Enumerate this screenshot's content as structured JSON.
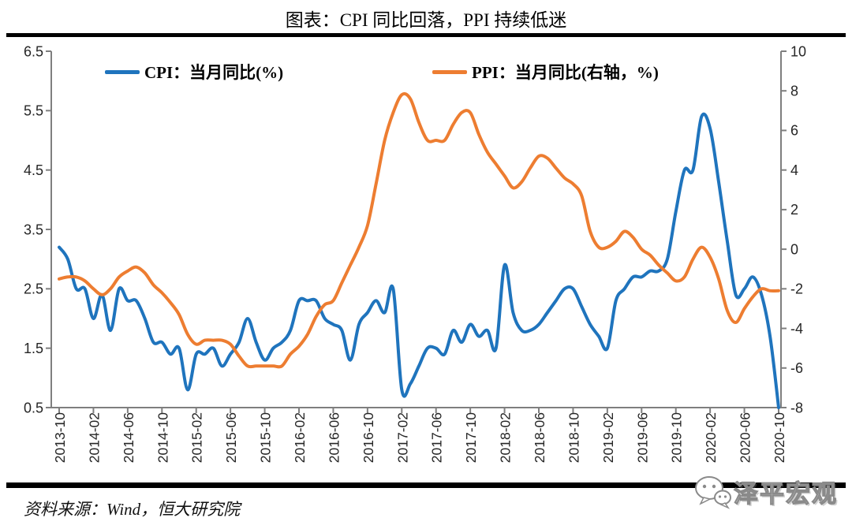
{
  "title": "图表：CPI 同比回落，PPI 持续低迷",
  "source": "资料来源：Wind，恒大研究院",
  "watermark": "泽平宏观",
  "colors": {
    "cpi_blue": "#1F74BD",
    "ppi_orange": "#ED7D31",
    "axis_gray": "#7F7F7F",
    "tick_text": "#262626",
    "rule_black": "#000000"
  },
  "legend": [
    {
      "label": "CPI：当月同比(%)",
      "color": "#1F74BD"
    },
    {
      "label": "PPI：当月同比(右轴，%)",
      "color": "#ED7D31"
    }
  ],
  "chart_data": {
    "type": "line",
    "title": "图表：CPI 同比回落，PPI 持续低迷",
    "grid": false,
    "legend_position": "top",
    "x": [
      "2013-10",
      "2013-11",
      "2013-12",
      "2014-01",
      "2014-02",
      "2014-03",
      "2014-04",
      "2014-05",
      "2014-06",
      "2014-07",
      "2014-08",
      "2014-09",
      "2014-10",
      "2014-11",
      "2014-12",
      "2015-01",
      "2015-02",
      "2015-03",
      "2015-04",
      "2015-05",
      "2015-06",
      "2015-07",
      "2015-08",
      "2015-09",
      "2015-10",
      "2015-11",
      "2015-12",
      "2016-01",
      "2016-02",
      "2016-03",
      "2016-04",
      "2016-05",
      "2016-06",
      "2016-07",
      "2016-08",
      "2016-09",
      "2016-10",
      "2016-11",
      "2016-12",
      "2017-01",
      "2017-02",
      "2017-03",
      "2017-04",
      "2017-05",
      "2017-06",
      "2017-07",
      "2017-08",
      "2017-09",
      "2017-10",
      "2017-11",
      "2017-12",
      "2018-01",
      "2018-02",
      "2018-03",
      "2018-04",
      "2018-05",
      "2018-06",
      "2018-07",
      "2018-08",
      "2018-09",
      "2018-10",
      "2018-11",
      "2018-12",
      "2019-01",
      "2019-02",
      "2019-03",
      "2019-04",
      "2019-05",
      "2019-06",
      "2019-07",
      "2019-08",
      "2019-09",
      "2019-10",
      "2019-11",
      "2019-12",
      "2020-01",
      "2020-02",
      "2020-03",
      "2020-04",
      "2020-05",
      "2020-06",
      "2020-07",
      "2020-08",
      "2020-09",
      "2020-10"
    ],
    "x_tick_labels": [
      "2013-10",
      "2014-02",
      "2014-06",
      "2014-10",
      "2015-02",
      "2015-06",
      "2015-10",
      "2016-02",
      "2016-06",
      "2016-10",
      "2017-02",
      "2017-06",
      "2017-10",
      "2018-02",
      "2018-06",
      "2018-10",
      "2019-02",
      "2019-06",
      "2019-10",
      "2020-02",
      "2020-06",
      "2020-10"
    ],
    "series": [
      {
        "name": "CPI：当月同比(%)",
        "axis": "left",
        "color": "#1F74BD",
        "values": [
          3.2,
          3.0,
          2.5,
          2.5,
          2.0,
          2.4,
          1.8,
          2.5,
          2.3,
          2.3,
          2.0,
          1.6,
          1.6,
          1.4,
          1.5,
          0.8,
          1.4,
          1.4,
          1.5,
          1.2,
          1.4,
          1.6,
          2.0,
          1.6,
          1.3,
          1.5,
          1.6,
          1.8,
          2.3,
          2.3,
          2.3,
          2.0,
          1.9,
          1.8,
          1.3,
          1.9,
          2.1,
          2.3,
          2.1,
          2.5,
          0.8,
          0.9,
          1.2,
          1.5,
          1.5,
          1.4,
          1.8,
          1.6,
          1.9,
          1.7,
          1.8,
          1.5,
          2.9,
          2.1,
          1.8,
          1.8,
          1.9,
          2.1,
          2.3,
          2.5,
          2.5,
          2.2,
          1.9,
          1.7,
          1.5,
          2.3,
          2.5,
          2.7,
          2.7,
          2.8,
          2.8,
          3.0,
          3.8,
          4.5,
          4.5,
          5.4,
          5.2,
          4.3,
          3.3,
          2.4,
          2.5,
          2.7,
          2.4,
          1.7,
          0.5
        ]
      },
      {
        "name": "PPI：当月同比(右轴，%)",
        "axis": "right",
        "color": "#ED7D31",
        "values": [
          -1.5,
          -1.4,
          -1.4,
          -1.6,
          -2.0,
          -2.3,
          -2.0,
          -1.4,
          -1.1,
          -0.9,
          -1.2,
          -1.8,
          -2.2,
          -2.7,
          -3.3,
          -4.3,
          -4.8,
          -4.6,
          -4.6,
          -4.6,
          -4.8,
          -5.4,
          -5.9,
          -5.9,
          -5.9,
          -5.9,
          -5.9,
          -5.3,
          -4.9,
          -4.3,
          -3.4,
          -2.8,
          -2.6,
          -1.7,
          -0.8,
          0.1,
          1.2,
          3.3,
          5.5,
          6.9,
          7.8,
          7.6,
          6.4,
          5.5,
          5.5,
          5.5,
          6.3,
          6.9,
          6.9,
          5.8,
          4.9,
          4.3,
          3.7,
          3.1,
          3.4,
          4.1,
          4.7,
          4.6,
          4.1,
          3.6,
          3.3,
          2.7,
          0.9,
          0.1,
          0.1,
          0.4,
          0.9,
          0.6,
          0.0,
          -0.3,
          -0.8,
          -1.2,
          -1.6,
          -1.4,
          -0.5,
          0.1,
          -0.4,
          -1.5,
          -3.1,
          -3.7,
          -3.0,
          -2.4,
          -2.0,
          -2.1,
          -2.1
        ]
      }
    ],
    "left_axis": {
      "label": "CPI 当月同比(%)",
      "ticks": [
        6.5,
        5.5,
        4.5,
        3.5,
        2.5,
        1.5,
        0.5
      ],
      "range": [
        0.5,
        6.5
      ]
    },
    "right_axis": {
      "label": "PPI 当月同比(%)",
      "ticks": [
        10,
        8,
        6,
        4,
        2,
        0,
        -2,
        -4,
        -6,
        -8
      ],
      "range": [
        -8,
        10
      ]
    }
  }
}
